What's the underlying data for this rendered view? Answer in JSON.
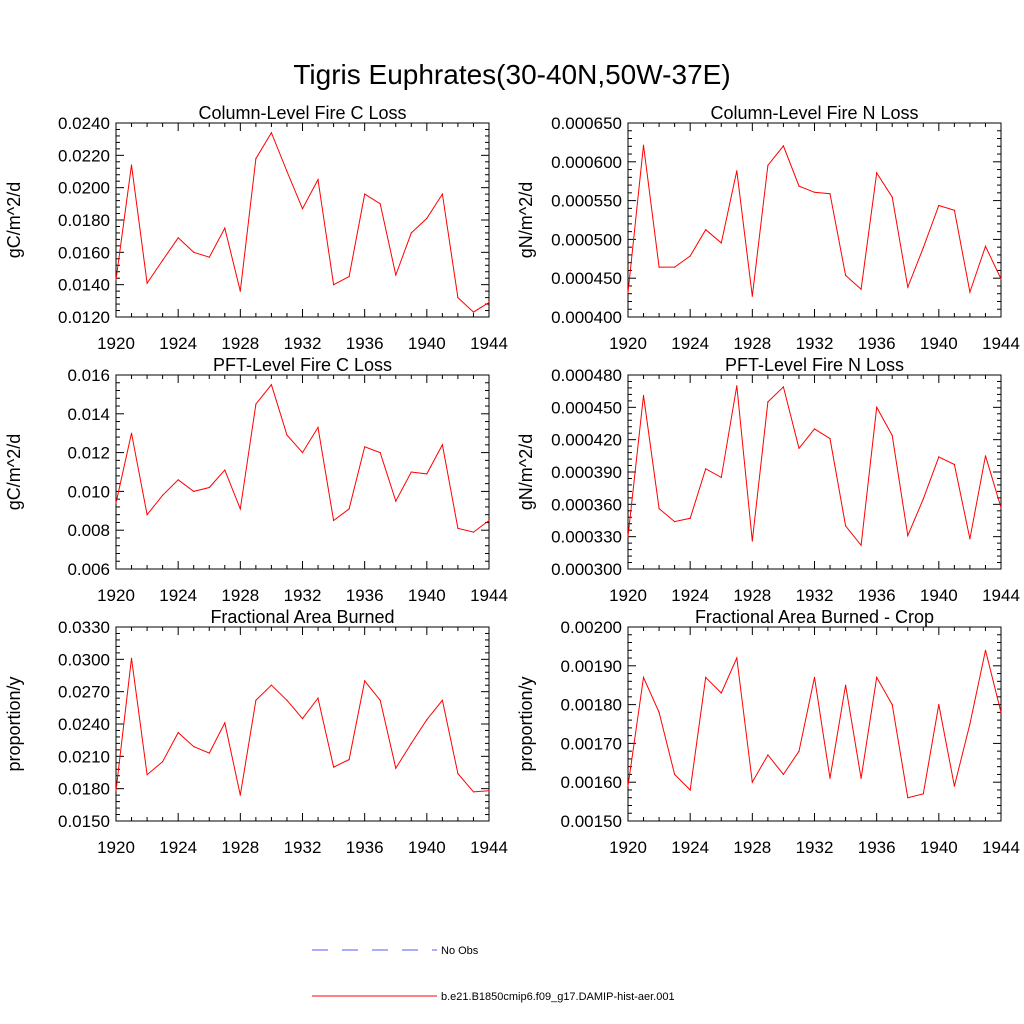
{
  "title": "Tigris Euphrates(30-40N,50W-37E)",
  "chart_data": [
    {
      "type": "line",
      "title": "Column-Level Fire C Loss",
      "ylabel": "gC/m^2/d",
      "xlim": [
        1920,
        1944
      ],
      "ylim": [
        0.012,
        0.024
      ],
      "xticks": [
        "1920",
        "1924",
        "1928",
        "1932",
        "1936",
        "1940",
        "1944"
      ],
      "yticks": [
        "0.0120",
        "0.0140",
        "0.0160",
        "0.0180",
        "0.0200",
        "0.0220",
        "0.0240"
      ],
      "x": [
        1920,
        1921,
        1922,
        1923,
        1924,
        1925,
        1926,
        1927,
        1928,
        1929,
        1930,
        1931,
        1932,
        1933,
        1934,
        1935,
        1936,
        1937,
        1938,
        1939,
        1940,
        1941,
        1942,
        1943,
        1944
      ],
      "series": [
        {
          "color": "#ff0000",
          "values": [
            0.0143,
            0.0214,
            0.0141,
            0.0155,
            0.0169,
            0.016,
            0.0157,
            0.0175,
            0.0136,
            0.0218,
            0.0234,
            0.021,
            0.0187,
            0.0205,
            0.014,
            0.0145,
            0.0196,
            0.019,
            0.0146,
            0.0172,
            0.0181,
            0.0196,
            0.0132,
            0.0123,
            0.0129
          ]
        }
      ]
    },
    {
      "type": "line",
      "title": "Column-Level Fire N Loss",
      "ylabel": "gN/m^2/d",
      "xlim": [
        1920,
        1944
      ],
      "ylim": [
        0.0004,
        0.00068
      ],
      "xticks": [
        "1920",
        "1924",
        "1928",
        "1932",
        "1936",
        "1940",
        "1944"
      ],
      "yticks": [
        "0.000400",
        "0.000450",
        "0.000500",
        "0.000550",
        "0.000600",
        "0.000650"
      ],
      "x": [
        1920,
        1921,
        1922,
        1923,
        1924,
        1925,
        1926,
        1927,
        1928,
        1929,
        1930,
        1931,
        1932,
        1933,
        1934,
        1935,
        1936,
        1937,
        1938,
        1939,
        1940,
        1941,
        1942,
        1943,
        1944
      ],
      "series": [
        {
          "color": "#ff0000",
          "values": [
            0.000435,
            0.000648,
            0.000472,
            0.000472,
            0.000488,
            0.000526,
            0.000507,
            0.000611,
            0.00043,
            0.000619,
            0.000647,
            0.000589,
            0.00058,
            0.000578,
            0.00046,
            0.00044,
            0.000608,
            0.000573,
            0.000443,
            0.0005,
            0.000561,
            0.000554,
            0.000436,
            0.000502,
            0.000455
          ]
        }
      ]
    },
    {
      "type": "line",
      "title": "PFT-Level Fire C Loss",
      "ylabel": "gC/m^2/d",
      "xlim": [
        1920,
        1944
      ],
      "ylim": [
        0.006,
        0.016
      ],
      "xticks": [
        "1920",
        "1924",
        "1928",
        "1932",
        "1936",
        "1940",
        "1944"
      ],
      "yticks": [
        "0.006",
        "0.008",
        "0.010",
        "0.012",
        "0.014",
        "0.016"
      ],
      "x": [
        1920,
        1921,
        1922,
        1923,
        1924,
        1925,
        1926,
        1927,
        1928,
        1929,
        1930,
        1931,
        1932,
        1933,
        1934,
        1935,
        1936,
        1937,
        1938,
        1939,
        1940,
        1941,
        1942,
        1943,
        1944
      ],
      "series": [
        {
          "color": "#ff0000",
          "values": [
            0.0094,
            0.013,
            0.0088,
            0.0098,
            0.0106,
            0.01,
            0.0102,
            0.0111,
            0.0091,
            0.0145,
            0.0155,
            0.0129,
            0.012,
            0.0133,
            0.0085,
            0.0091,
            0.0123,
            0.012,
            0.0095,
            0.011,
            0.0109,
            0.0124,
            0.0081,
            0.0079,
            0.0085
          ]
        }
      ]
    },
    {
      "type": "line",
      "title": "PFT-Level Fire N Loss",
      "ylabel": "gN/m^2/d",
      "xlim": [
        1920,
        1944
      ],
      "ylim": [
        0.0003,
        0.00048
      ],
      "xticks": [
        "1920",
        "1924",
        "1928",
        "1932",
        "1936",
        "1940",
        "1944"
      ],
      "yticks": [
        "0.000300",
        "0.000330",
        "0.000360",
        "0.000390",
        "0.000420",
        "0.000450",
        "0.000480"
      ],
      "x": [
        1920,
        1921,
        1922,
        1923,
        1924,
        1925,
        1926,
        1927,
        1928,
        1929,
        1930,
        1931,
        1932,
        1933,
        1934,
        1935,
        1936,
        1937,
        1938,
        1939,
        1940,
        1941,
        1942,
        1943,
        1944
      ],
      "series": [
        {
          "color": "#ff0000",
          "values": [
            0.00033,
            0.000461,
            0.000356,
            0.000344,
            0.000347,
            0.000393,
            0.000385,
            0.00047,
            0.000326,
            0.000455,
            0.000469,
            0.000412,
            0.00043,
            0.000421,
            0.00034,
            0.000322,
            0.00045,
            0.000424,
            0.000331,
            0.000365,
            0.000404,
            0.000397,
            0.000328,
            0.000405,
            0.000357
          ]
        }
      ]
    },
    {
      "type": "line",
      "title": "Fractional Area Burned",
      "ylabel": "proportion/y",
      "xlim": [
        1920,
        1944
      ],
      "ylim": [
        0.015,
        0.033
      ],
      "xticks": [
        "1920",
        "1924",
        "1928",
        "1932",
        "1936",
        "1940",
        "1944"
      ],
      "yticks": [
        "0.0150",
        "0.0180",
        "0.0210",
        "0.0240",
        "0.0270",
        "0.0300",
        "0.0330"
      ],
      "x": [
        1920,
        1921,
        1922,
        1923,
        1924,
        1925,
        1926,
        1927,
        1928,
        1929,
        1930,
        1931,
        1932,
        1933,
        1934,
        1935,
        1936,
        1937,
        1938,
        1939,
        1940,
        1941,
        1942,
        1943,
        1944
      ],
      "series": [
        {
          "color": "#ff0000",
          "values": [
            0.0178,
            0.0301,
            0.0193,
            0.0205,
            0.0232,
            0.0219,
            0.0213,
            0.0241,
            0.0174,
            0.0262,
            0.0276,
            0.0262,
            0.0245,
            0.0264,
            0.02,
            0.0207,
            0.028,
            0.0262,
            0.0199,
            0.0222,
            0.0244,
            0.0262,
            0.0194,
            0.0177,
            0.0178
          ]
        }
      ]
    },
    {
      "type": "line",
      "title": "Fractional Area Burned - Crop",
      "ylabel": "proportion/y",
      "xlim": [
        1920,
        1944
      ],
      "ylim": [
        0.0015,
        0.002
      ],
      "xticks": [
        "1920",
        "1924",
        "1928",
        "1932",
        "1936",
        "1940",
        "1944"
      ],
      "yticks": [
        "0.00150",
        "0.00160",
        "0.00170",
        "0.00180",
        "0.00190",
        "0.00200"
      ],
      "x": [
        1920,
        1921,
        1922,
        1923,
        1924,
        1925,
        1926,
        1927,
        1928,
        1929,
        1930,
        1931,
        1932,
        1933,
        1934,
        1935,
        1936,
        1937,
        1938,
        1939,
        1940,
        1941,
        1942,
        1943,
        1944
      ],
      "series": [
        {
          "color": "#ff0000",
          "values": [
            0.00159,
            0.00187,
            0.00178,
            0.00162,
            0.00158,
            0.00187,
            0.00183,
            0.00192,
            0.0016,
            0.00167,
            0.00162,
            0.00168,
            0.00187,
            0.00161,
            0.00185,
            0.00161,
            0.00187,
            0.0018,
            0.00156,
            0.00157,
            0.0018,
            0.00159,
            0.00175,
            0.00194,
            0.00178
          ]
        }
      ]
    }
  ],
  "legend": {
    "items": [
      {
        "label": "No Obs",
        "color": "#5a5aff",
        "style": "dashed"
      },
      {
        "label": "b.e21.B1850cmip6.f09_g17.DAMIP-hist-aer.001",
        "color": "#ff0000",
        "style": "solid"
      }
    ]
  }
}
